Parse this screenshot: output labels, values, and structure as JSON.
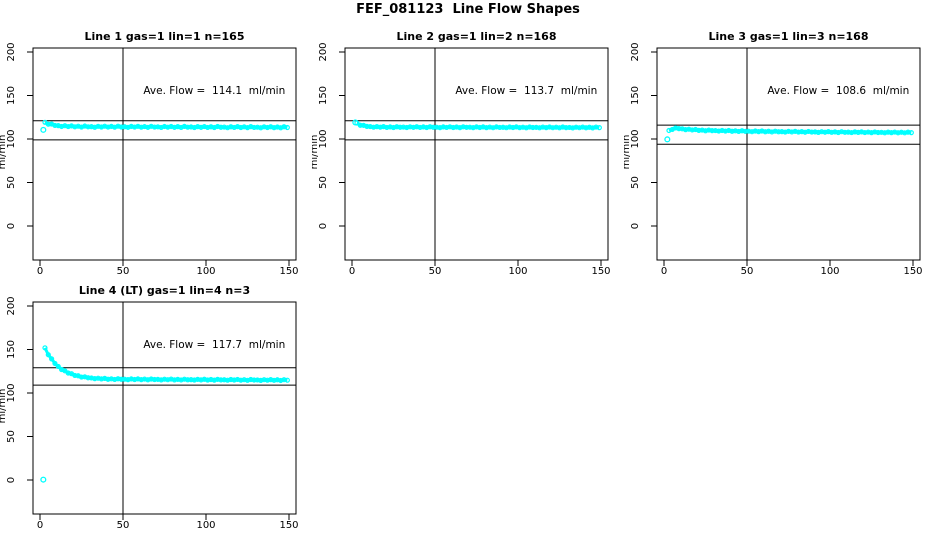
{
  "page_title": "FEF_081123  Line Flow Shapes",
  "colors": {
    "points": "#00FFFF",
    "axis": "#000000",
    "background": "#FFFFFF",
    "title_text": "#000000"
  },
  "axes_defaults": {
    "xlabel": "",
    "ylabel": "ml/min",
    "x_ticks": [
      0,
      50,
      100,
      150
    ],
    "y_ticks": [
      0,
      50,
      100,
      150,
      200
    ],
    "xlim": [
      0,
      150
    ],
    "ylim": [
      0,
      200
    ],
    "grid": false,
    "marker": "open-circle"
  },
  "chart_data": [
    {
      "type": "scatter",
      "title": "Line 1 gas=1 lin=1 n=165",
      "annotation": "Ave. Flow =  114.1  ml/min",
      "ave_flow": 114.1,
      "n": 165,
      "gas": 1,
      "lin": 1,
      "ylabel": "ml/min",
      "vline_x": 50,
      "ref_lines": [
        121.0,
        99.0
      ],
      "outliers": [
        [
          2,
          110.5
        ]
      ],
      "points": [
        [
          3,
          119.2
        ],
        [
          5,
          117.0
        ],
        [
          7,
          117.2
        ],
        [
          9,
          115.6
        ],
        [
          11,
          115.4
        ],
        [
          13,
          114.4
        ],
        [
          15,
          115.3
        ],
        [
          17,
          114.3
        ],
        [
          19,
          115.1
        ],
        [
          21,
          114.0
        ],
        [
          23,
          114.7
        ],
        [
          25,
          113.7
        ],
        [
          27,
          114.9
        ],
        [
          29,
          114.0
        ],
        [
          31,
          114.2
        ],
        [
          33,
          113.5
        ],
        [
          35,
          114.6
        ],
        [
          37,
          113.8
        ],
        [
          39,
          114.7
        ],
        [
          41,
          113.7
        ],
        [
          43,
          114.5
        ],
        [
          45,
          113.6
        ],
        [
          47,
          114.7
        ],
        [
          49,
          113.8
        ],
        [
          51,
          114.1
        ],
        [
          53,
          113.4
        ],
        [
          55,
          114.5
        ],
        [
          57,
          113.7
        ],
        [
          59,
          114.6
        ],
        [
          61,
          113.6
        ],
        [
          63,
          114.3
        ],
        [
          65,
          113.4
        ],
        [
          67,
          114.6
        ],
        [
          69,
          113.7
        ],
        [
          71,
          114.0
        ],
        [
          73,
          113.3
        ],
        [
          75,
          114.4
        ],
        [
          77,
          113.6
        ],
        [
          79,
          114.4
        ],
        [
          81,
          113.4
        ],
        [
          83,
          114.2
        ],
        [
          85,
          113.3
        ],
        [
          87,
          114.5
        ],
        [
          89,
          113.6
        ],
        [
          91,
          113.9
        ],
        [
          93,
          113.2
        ],
        [
          95,
          114.2
        ],
        [
          97,
          113.4
        ],
        [
          99,
          114.3
        ],
        [
          101,
          113.3
        ],
        [
          103,
          114.1
        ],
        [
          105,
          113.2
        ],
        [
          107,
          114.4
        ],
        [
          109,
          113.5
        ],
        [
          111,
          113.7
        ],
        [
          113,
          113.0
        ],
        [
          115,
          114.1
        ],
        [
          117,
          113.3
        ],
        [
          119,
          114.2
        ],
        [
          121,
          113.2
        ],
        [
          123,
          114.0
        ],
        [
          125,
          113.1
        ],
        [
          127,
          114.2
        ],
        [
          129,
          113.3
        ],
        [
          131,
          113.6
        ],
        [
          133,
          112.9
        ],
        [
          135,
          114.0
        ],
        [
          137,
          113.2
        ],
        [
          139,
          114.1
        ],
        [
          141,
          113.1
        ],
        [
          143,
          113.8
        ],
        [
          145,
          112.9
        ],
        [
          147,
          114.1
        ],
        [
          149,
          113.2
        ]
      ]
    },
    {
      "type": "scatter",
      "title": "Line 2 gas=1 lin=2 n=168",
      "annotation": "Ave. Flow =  113.7  ml/min",
      "ave_flow": 113.7,
      "n": 168,
      "gas": 1,
      "lin": 2,
      "ylabel": "ml/min",
      "vline_x": 50,
      "ref_lines": [
        121.0,
        99.0
      ],
      "outliers": [
        [
          2,
          119.0
        ]
      ],
      "points": [
        [
          3,
          118.3
        ],
        [
          5,
          115.8
        ],
        [
          7,
          115.7
        ],
        [
          9,
          114.5
        ],
        [
          11,
          114.3
        ],
        [
          13,
          113.6
        ],
        [
          15,
          114.2
        ],
        [
          17,
          113.6
        ],
        [
          19,
          114.2
        ],
        [
          21,
          113.3
        ],
        [
          23,
          113.9
        ],
        [
          25,
          113.2
        ],
        [
          27,
          114.1
        ],
        [
          29,
          113.5
        ],
        [
          31,
          113.7
        ],
        [
          33,
          113.2
        ],
        [
          35,
          114.0
        ],
        [
          37,
          113.4
        ],
        [
          39,
          114.1
        ],
        [
          41,
          113.3
        ],
        [
          43,
          113.9
        ],
        [
          45,
          113.2
        ],
        [
          47,
          114.1
        ],
        [
          49,
          113.5
        ],
        [
          51,
          113.6
        ],
        [
          53,
          113.1
        ],
        [
          55,
          113.9
        ],
        [
          57,
          113.3
        ],
        [
          59,
          114.0
        ],
        [
          61,
          113.2
        ],
        [
          63,
          113.8
        ],
        [
          65,
          113.1
        ],
        [
          67,
          114.0
        ],
        [
          69,
          113.4
        ],
        [
          71,
          113.6
        ],
        [
          73,
          113.1
        ],
        [
          75,
          113.9
        ],
        [
          77,
          113.2
        ],
        [
          79,
          113.9
        ],
        [
          81,
          113.1
        ],
        [
          83,
          113.7
        ],
        [
          85,
          113.0
        ],
        [
          87,
          113.9
        ],
        [
          89,
          113.3
        ],
        [
          91,
          113.5
        ],
        [
          93,
          113.0
        ],
        [
          95,
          113.8
        ],
        [
          97,
          113.2
        ],
        [
          99,
          113.9
        ],
        [
          101,
          113.1
        ],
        [
          103,
          113.6
        ],
        [
          105,
          112.9
        ],
        [
          107,
          113.8
        ],
        [
          109,
          113.2
        ],
        [
          111,
          113.4
        ],
        [
          113,
          112.9
        ],
        [
          115,
          113.7
        ],
        [
          117,
          113.1
        ],
        [
          119,
          113.8
        ],
        [
          121,
          113.0
        ],
        [
          123,
          113.6
        ],
        [
          125,
          112.9
        ],
        [
          127,
          113.8
        ],
        [
          129,
          113.1
        ],
        [
          131,
          113.3
        ],
        [
          133,
          112.8
        ],
        [
          135,
          113.6
        ],
        [
          137,
          113.0
        ],
        [
          139,
          113.7
        ],
        [
          141,
          112.9
        ],
        [
          143,
          113.5
        ],
        [
          145,
          112.8
        ],
        [
          147,
          113.7
        ],
        [
          149,
          113.1
        ]
      ]
    },
    {
      "type": "scatter",
      "title": "Line 3 gas=1 lin=3 n=168",
      "annotation": "Ave. Flow =  108.6  ml/min",
      "ave_flow": 108.6,
      "n": 168,
      "gas": 1,
      "lin": 3,
      "ylabel": "ml/min",
      "vline_x": 50,
      "ref_lines": [
        116.0,
        94.0
      ],
      "outliers": [
        [
          2,
          99.6
        ]
      ],
      "points": [
        [
          3,
          109.8
        ],
        [
          5,
          111.0
        ],
        [
          7,
          112.7
        ],
        [
          9,
          111.9
        ],
        [
          11,
          111.7
        ],
        [
          13,
          110.8
        ],
        [
          15,
          111.3
        ],
        [
          17,
          110.4
        ],
        [
          19,
          110.9
        ],
        [
          21,
          109.9
        ],
        [
          23,
          110.3
        ],
        [
          25,
          109.5
        ],
        [
          27,
          110.3
        ],
        [
          29,
          109.6
        ],
        [
          31,
          109.7
        ],
        [
          33,
          109.1
        ],
        [
          35,
          109.8
        ],
        [
          37,
          109.1
        ],
        [
          39,
          109.8
        ],
        [
          41,
          108.9
        ],
        [
          43,
          109.4
        ],
        [
          45,
          108.7
        ],
        [
          47,
          109.5
        ],
        [
          49,
          108.8
        ],
        [
          51,
          109.0
        ],
        [
          53,
          108.4
        ],
        [
          55,
          109.2
        ],
        [
          57,
          108.5
        ],
        [
          59,
          109.2
        ],
        [
          61,
          108.3
        ],
        [
          63,
          108.9
        ],
        [
          65,
          108.1
        ],
        [
          67,
          109.0
        ],
        [
          69,
          108.3
        ],
        [
          71,
          108.5
        ],
        [
          73,
          108.0
        ],
        [
          75,
          108.8
        ],
        [
          77,
          108.1
        ],
        [
          79,
          108.8
        ],
        [
          81,
          108.0
        ],
        [
          83,
          108.5
        ],
        [
          85,
          107.8
        ],
        [
          87,
          108.7
        ],
        [
          89,
          108.0
        ],
        [
          91,
          108.2
        ],
        [
          93,
          107.6
        ],
        [
          95,
          108.4
        ],
        [
          97,
          107.8
        ],
        [
          99,
          108.5
        ],
        [
          101,
          107.7
        ],
        [
          103,
          108.2
        ],
        [
          105,
          107.5
        ],
        [
          107,
          108.4
        ],
        [
          109,
          107.7
        ],
        [
          111,
          107.9
        ],
        [
          113,
          107.4
        ],
        [
          115,
          108.2
        ],
        [
          117,
          107.6
        ],
        [
          119,
          108.2
        ],
        [
          121,
          107.4
        ],
        [
          123,
          108.0
        ],
        [
          125,
          107.3
        ],
        [
          127,
          108.1
        ],
        [
          129,
          107.5
        ],
        [
          131,
          107.7
        ],
        [
          133,
          107.2
        ],
        [
          135,
          107.9
        ],
        [
          137,
          107.3
        ],
        [
          139,
          108.0
        ],
        [
          141,
          107.2
        ],
        [
          143,
          107.8
        ],
        [
          145,
          107.1
        ],
        [
          147,
          107.9
        ],
        [
          149,
          107.3
        ]
      ]
    },
    {
      "type": "scatter",
      "title": "Line 4 (LT) gas=1 lin=4 n=3",
      "annotation": "Ave. Flow =  117.7  ml/min",
      "ave_flow": 117.7,
      "n": 3,
      "gas": 1,
      "lin": 4,
      "ylabel": "ml/min",
      "vline_x": 50,
      "ref_lines": [
        129.0,
        109.0
      ],
      "outliers": [
        [
          2,
          0.4
        ]
      ],
      "points": [
        [
          3,
          151.9
        ],
        [
          5,
          144.0
        ],
        [
          7,
          139.2
        ],
        [
          9,
          134.0
        ],
        [
          11,
          130.5
        ],
        [
          13,
          127.0
        ],
        [
          15,
          125.5
        ],
        [
          17,
          123.0
        ],
        [
          19,
          122.2
        ],
        [
          21,
          120.2
        ],
        [
          23,
          119.8
        ],
        [
          25,
          118.3
        ],
        [
          27,
          118.6
        ],
        [
          29,
          117.5
        ],
        [
          31,
          117.3
        ],
        [
          33,
          116.5
        ],
        [
          35,
          117.0
        ],
        [
          37,
          116.2
        ],
        [
          39,
          116.8
        ],
        [
          41,
          115.8
        ],
        [
          43,
          116.3
        ],
        [
          45,
          115.6
        ],
        [
          47,
          116.4
        ],
        [
          49,
          115.8
        ],
        [
          51,
          115.9
        ],
        [
          53,
          115.4
        ],
        [
          55,
          116.2
        ],
        [
          57,
          115.5
        ],
        [
          59,
          116.2
        ],
        [
          61,
          115.4
        ],
        [
          63,
          116.0
        ],
        [
          65,
          115.2
        ],
        [
          67,
          116.1
        ],
        [
          69,
          115.5
        ],
        [
          71,
          115.7
        ],
        [
          73,
          115.1
        ],
        [
          75,
          115.9
        ],
        [
          77,
          115.3
        ],
        [
          79,
          116.0
        ],
        [
          81,
          115.1
        ],
        [
          83,
          115.7
        ],
        [
          85,
          115.0
        ],
        [
          87,
          115.9
        ],
        [
          89,
          115.2
        ],
        [
          91,
          115.4
        ],
        [
          93,
          114.9
        ],
        [
          95,
          115.7
        ],
        [
          97,
          115.1
        ],
        [
          99,
          115.8
        ],
        [
          101,
          114.9
        ],
        [
          103,
          115.5
        ],
        [
          105,
          114.8
        ],
        [
          107,
          115.7
        ],
        [
          109,
          115.1
        ],
        [
          111,
          115.2
        ],
        [
          113,
          114.7
        ],
        [
          115,
          115.5
        ],
        [
          117,
          114.9
        ],
        [
          119,
          115.6
        ],
        [
          121,
          114.7
        ],
        [
          123,
          115.3
        ],
        [
          125,
          114.6
        ],
        [
          127,
          115.5
        ],
        [
          129,
          114.9
        ],
        [
          131,
          115.0
        ],
        [
          133,
          114.5
        ],
        [
          135,
          115.3
        ],
        [
          137,
          114.7
        ],
        [
          139,
          115.4
        ],
        [
          141,
          114.6
        ],
        [
          143,
          115.2
        ],
        [
          145,
          114.4
        ],
        [
          147,
          115.3
        ],
        [
          149,
          114.7
        ]
      ]
    }
  ]
}
